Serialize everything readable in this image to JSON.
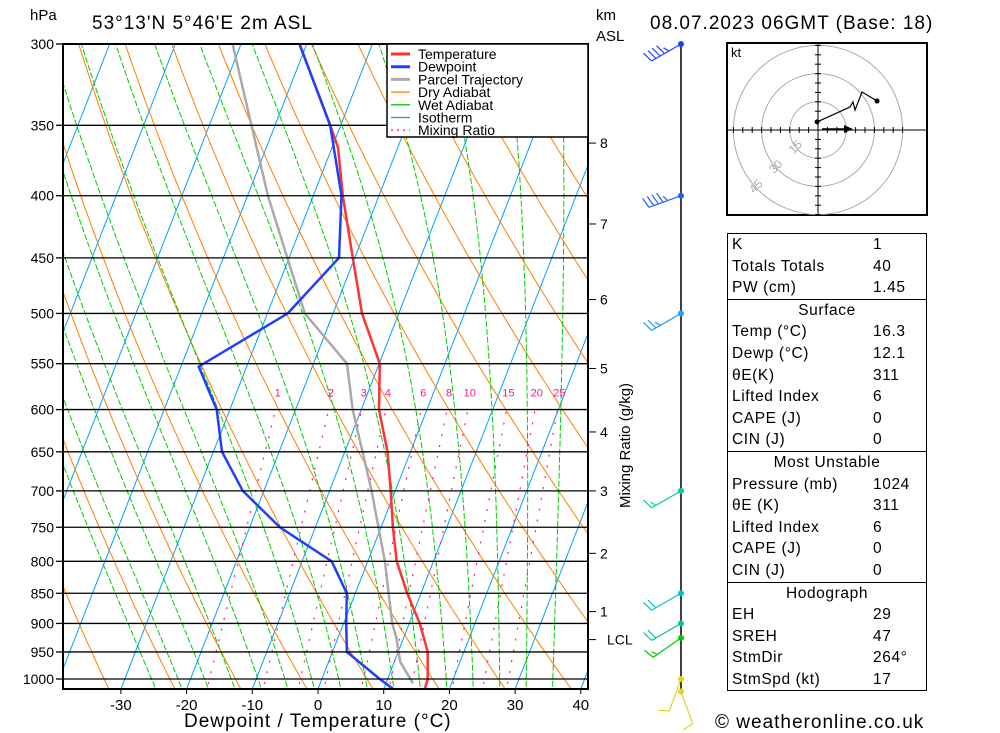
{
  "header": {
    "pressure_unit": "hPa",
    "location": "53°13'N  5°46'E  2m  ASL",
    "height_unit_line1": "km",
    "height_unit_line2": "ASL",
    "datetime": "08.07.2023  06GMT  (Base: 18)"
  },
  "footer": {
    "copyright": "© weatheronline.co.uk"
  },
  "colors": {
    "temperature": "#ff3333",
    "dewpoint": "#2040ff",
    "parcel": "#aaaaaa",
    "dry_adiabat": "#ff7f00",
    "wet_adiabat": "#00cc00",
    "isotherm": "#00a0ff",
    "mixing_ratio": "#ff1493"
  },
  "chart_data": {
    "type": "line",
    "subtype": "skew-t log-p",
    "xlabel": "Dewpoint / Temperature (°C)",
    "ylabel": "hPa",
    "right_label": "Mixing Ratio (g/kg)",
    "x_ticks": [
      -30,
      -20,
      -10,
      0,
      10,
      20,
      30,
      40
    ],
    "xlim": [
      -30,
      40
    ],
    "pressure_levels": [
      300,
      350,
      400,
      450,
      500,
      550,
      600,
      650,
      700,
      750,
      800,
      850,
      900,
      950,
      1000
    ],
    "pressure_range": [
      300,
      1024
    ],
    "legend": [
      "Temperature",
      "Dewpoint",
      "Parcel Trajectory",
      "Dry Adiabat",
      "Wet Adiabat",
      "Isotherm",
      "Mixing Ratio"
    ],
    "legend_placement": "top-right",
    "km_labels": [
      {
        "label": "8",
        "p": 362
      },
      {
        "label": "7",
        "p": 422
      },
      {
        "label": "6",
        "p": 487
      },
      {
        "label": "5",
        "p": 555
      },
      {
        "label": "4",
        "p": 626
      },
      {
        "label": "3",
        "p": 700
      },
      {
        "label": "2",
        "p": 788
      },
      {
        "label": "1",
        "p": 880
      },
      {
        "label": "LCL",
        "p": 928
      }
    ],
    "mixing_ratio_labels": [
      1,
      2,
      3,
      4,
      6,
      8,
      10,
      15,
      20,
      25
    ],
    "series": [
      {
        "name": "Temperature",
        "points": [
          [
            1024,
            16.3
          ],
          [
            1000,
            16.1
          ],
          [
            950,
            14.5
          ],
          [
            900,
            11.6
          ],
          [
            850,
            7.9
          ],
          [
            800,
            4.4
          ],
          [
            750,
            1.8
          ],
          [
            700,
            -0.7
          ],
          [
            650,
            -3.5
          ],
          [
            600,
            -7.3
          ],
          [
            550,
            -9.9
          ],
          [
            500,
            -15.6
          ],
          [
            450,
            -20.3
          ],
          [
            400,
            -25.5
          ],
          [
            365,
            -29.1
          ],
          [
            350,
            -31.6
          ],
          [
            300,
            -41.1
          ]
        ]
      },
      {
        "name": "Dewpoint",
        "points": [
          [
            1024,
            12.1
          ],
          [
            1000,
            8.8
          ],
          [
            950,
            2.2
          ],
          [
            900,
            0.4
          ],
          [
            850,
            -1.3
          ],
          [
            800,
            -5.5
          ],
          [
            750,
            -15.4
          ],
          [
            700,
            -23.2
          ],
          [
            650,
            -28.7
          ],
          [
            600,
            -32.0
          ],
          [
            553,
            -37.3
          ],
          [
            500,
            -26.9
          ],
          [
            450,
            -22.4
          ],
          [
            400,
            -25.7
          ],
          [
            350,
            -31.6
          ],
          [
            300,
            -41.1
          ]
        ]
      },
      {
        "name": "Parcel Trajectory",
        "points": [
          [
            1008,
            14.1
          ],
          [
            968,
            10.9
          ],
          [
            925,
            8.9
          ],
          [
            900,
            7.4
          ],
          [
            800,
            2.6
          ],
          [
            700,
            -3.6
          ],
          [
            600,
            -11.3
          ],
          [
            550,
            -14.9
          ],
          [
            500,
            -24.3
          ],
          [
            400,
            -36.9
          ],
          [
            300,
            -51.3
          ]
        ]
      }
    ],
    "winds": [
      {
        "p": 300,
        "dir": 240,
        "kt": 45,
        "color": "#2040ff"
      },
      {
        "p": 400,
        "dir": 250,
        "kt": 45,
        "color": "#2060ff"
      },
      {
        "p": 500,
        "dir": 240,
        "kt": 25,
        "color": "#20a0ff"
      },
      {
        "p": 700,
        "dir": 240,
        "kt": 15,
        "color": "#00d0a0"
      },
      {
        "p": 850,
        "dir": 240,
        "kt": 20,
        "color": "#00c8c8"
      },
      {
        "p": 900,
        "dir": 240,
        "kt": 20,
        "color": "#00c8a0"
      },
      {
        "p": 925,
        "dir": 235,
        "kt": 15,
        "color": "#00cc00"
      },
      {
        "p": 1000,
        "dir": 200,
        "kt": 10,
        "color": "#e8d020"
      },
      {
        "p": 1024,
        "dir": 160,
        "kt": 10,
        "color": "#e8d020"
      }
    ]
  },
  "hodograph": {
    "unit": "kt",
    "rings": [
      "15",
      "30",
      "45"
    ],
    "trace_kt": [
      [
        -0.5,
        4.3
      ],
      [
        17,
        12.2
      ],
      [
        18.6,
        14.9
      ],
      [
        19.7,
        10.6
      ],
      [
        23.4,
        20.2
      ],
      [
        31.4,
        15.4
      ]
    ],
    "storm_motion_kt": [
      18.6,
      0.5
    ]
  },
  "stats": {
    "indices": [
      {
        "label": "K",
        "value": "1"
      },
      {
        "label": "Totals Totals",
        "value": "40"
      },
      {
        "label": "PW (cm)",
        "value": "1.45"
      }
    ],
    "surface": {
      "title": "Surface",
      "rows": [
        {
          "label": "Temp (°C)",
          "value": "16.3"
        },
        {
          "label": "Dewp (°C)",
          "value": "12.1"
        },
        {
          "label": "θE(K)",
          "value": "311"
        },
        {
          "label": "Lifted Index",
          "value": "6"
        },
        {
          "label": "CAPE (J)",
          "value": "0"
        },
        {
          "label": "CIN (J)",
          "value": "0"
        }
      ]
    },
    "most_unstable": {
      "title": "Most Unstable",
      "rows": [
        {
          "label": "Pressure (mb)",
          "value": "1024"
        },
        {
          "label": "θE (K)",
          "value": "311"
        },
        {
          "label": "Lifted Index",
          "value": "6"
        },
        {
          "label": "CAPE (J)",
          "value": "0"
        },
        {
          "label": "CIN (J)",
          "value": "0"
        }
      ]
    },
    "hodograph": {
      "title": "Hodograph",
      "rows": [
        {
          "label": "EH",
          "value": "29"
        },
        {
          "label": "SREH",
          "value": "47"
        },
        {
          "label": "StmDir",
          "value": "264°"
        },
        {
          "label": "StmSpd (kt)",
          "value": "17"
        }
      ]
    }
  }
}
